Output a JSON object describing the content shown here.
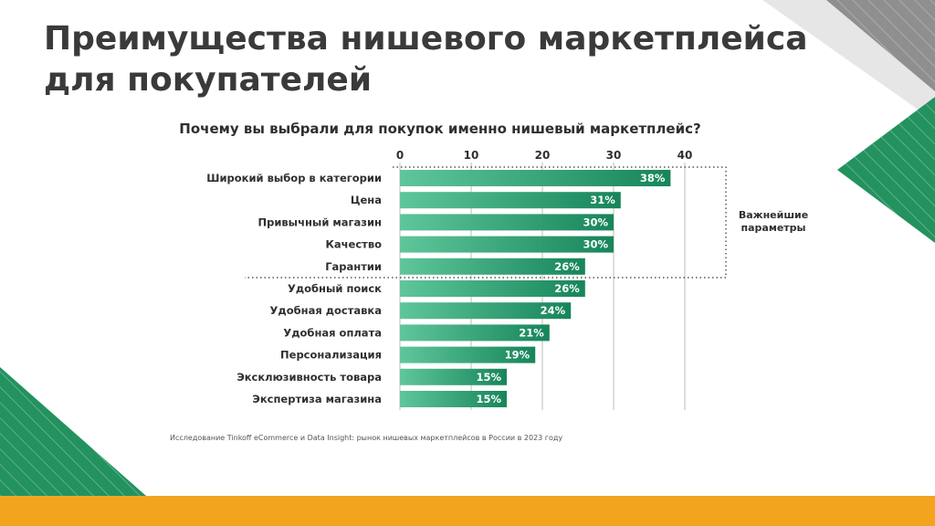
{
  "slide": {
    "title": "Преимущества нишевого маркетплейса для покупателей",
    "source": "Исследование Tinkoff eCommerce и Data Insight: рынок нишевых маркетплейсов в России в 2023 году"
  },
  "colors": {
    "bar_start": "#5fc69b",
    "bar_end": "#17855a",
    "deco_green": "#23925f",
    "deco_gray": "#8f8f8f",
    "deco_light": "#e6e6e6",
    "band": "#f3a41f",
    "text": "#2f2f2f"
  },
  "chart_data": {
    "type": "bar",
    "orientation": "horizontal",
    "title": "Почему вы выбрали для покупок именно нишевый маркетплейс?",
    "categories": [
      "Широкий выбор в категории",
      "Цена",
      "Привычный магазин",
      "Качество",
      "Гарантии",
      "Удобный поиск",
      "Удобная доставка",
      "Удобная оплата",
      "Персонализация",
      "Эксклюзивность товара",
      "Экспертиза магазина"
    ],
    "values": [
      38,
      31,
      30,
      30,
      26,
      26,
      24,
      21,
      19,
      15,
      15
    ],
    "value_labels": [
      "38%",
      "31%",
      "30%",
      "30%",
      "26%",
      "26%",
      "24%",
      "21%",
      "19%",
      "15%",
      "15%"
    ],
    "xlim": [
      0,
      40
    ],
    "x_ticks": [
      "0",
      "10",
      "20",
      "30",
      "40"
    ],
    "x_tick_values": [
      0,
      10,
      20,
      30,
      40
    ],
    "grid": true,
    "axis_position": "top",
    "highlight": {
      "label_line1": "Важнейшие",
      "label_line2": "параметры",
      "count": 5
    }
  }
}
